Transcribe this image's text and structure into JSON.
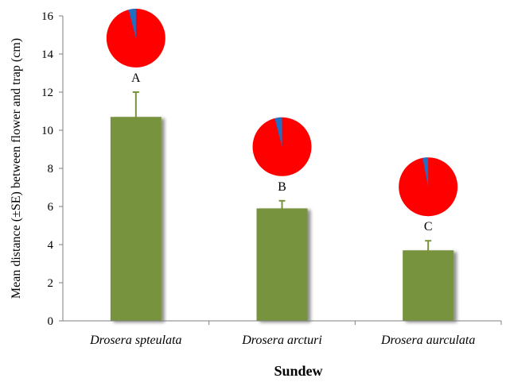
{
  "chart_data": {
    "type": "bar",
    "categories": [
      "Drosera spteulata",
      "Drosera arcturi",
      "Drosera aurculata"
    ],
    "values": [
      10.7,
      5.9,
      3.7
    ],
    "errors": [
      1.3,
      0.4,
      0.5
    ],
    "significance_letters": [
      "A",
      "B",
      "C"
    ],
    "pie_insets": [
      {
        "major_fraction": 0.96,
        "minor_fraction": 0.04
      },
      {
        "major_fraction": 0.96,
        "minor_fraction": 0.04
      },
      {
        "major_fraction": 0.97,
        "minor_fraction": 0.03
      }
    ],
    "ylim": [
      0,
      16
    ],
    "yticks": [
      0,
      2,
      4,
      6,
      8,
      10,
      12,
      14,
      16
    ],
    "ylabel": "Mean distance (±SE) between flower and trap (cm)",
    "xlabel": "Sundew",
    "grid": false,
    "legend": "none",
    "colors": {
      "bar": "#77933C",
      "bar_shadow": "#c8c8c8",
      "error_bar": "#77933C",
      "axis": "#7f7f7f",
      "pie_major": "#FF0000",
      "pie_minor": "#1F6FC5"
    }
  }
}
